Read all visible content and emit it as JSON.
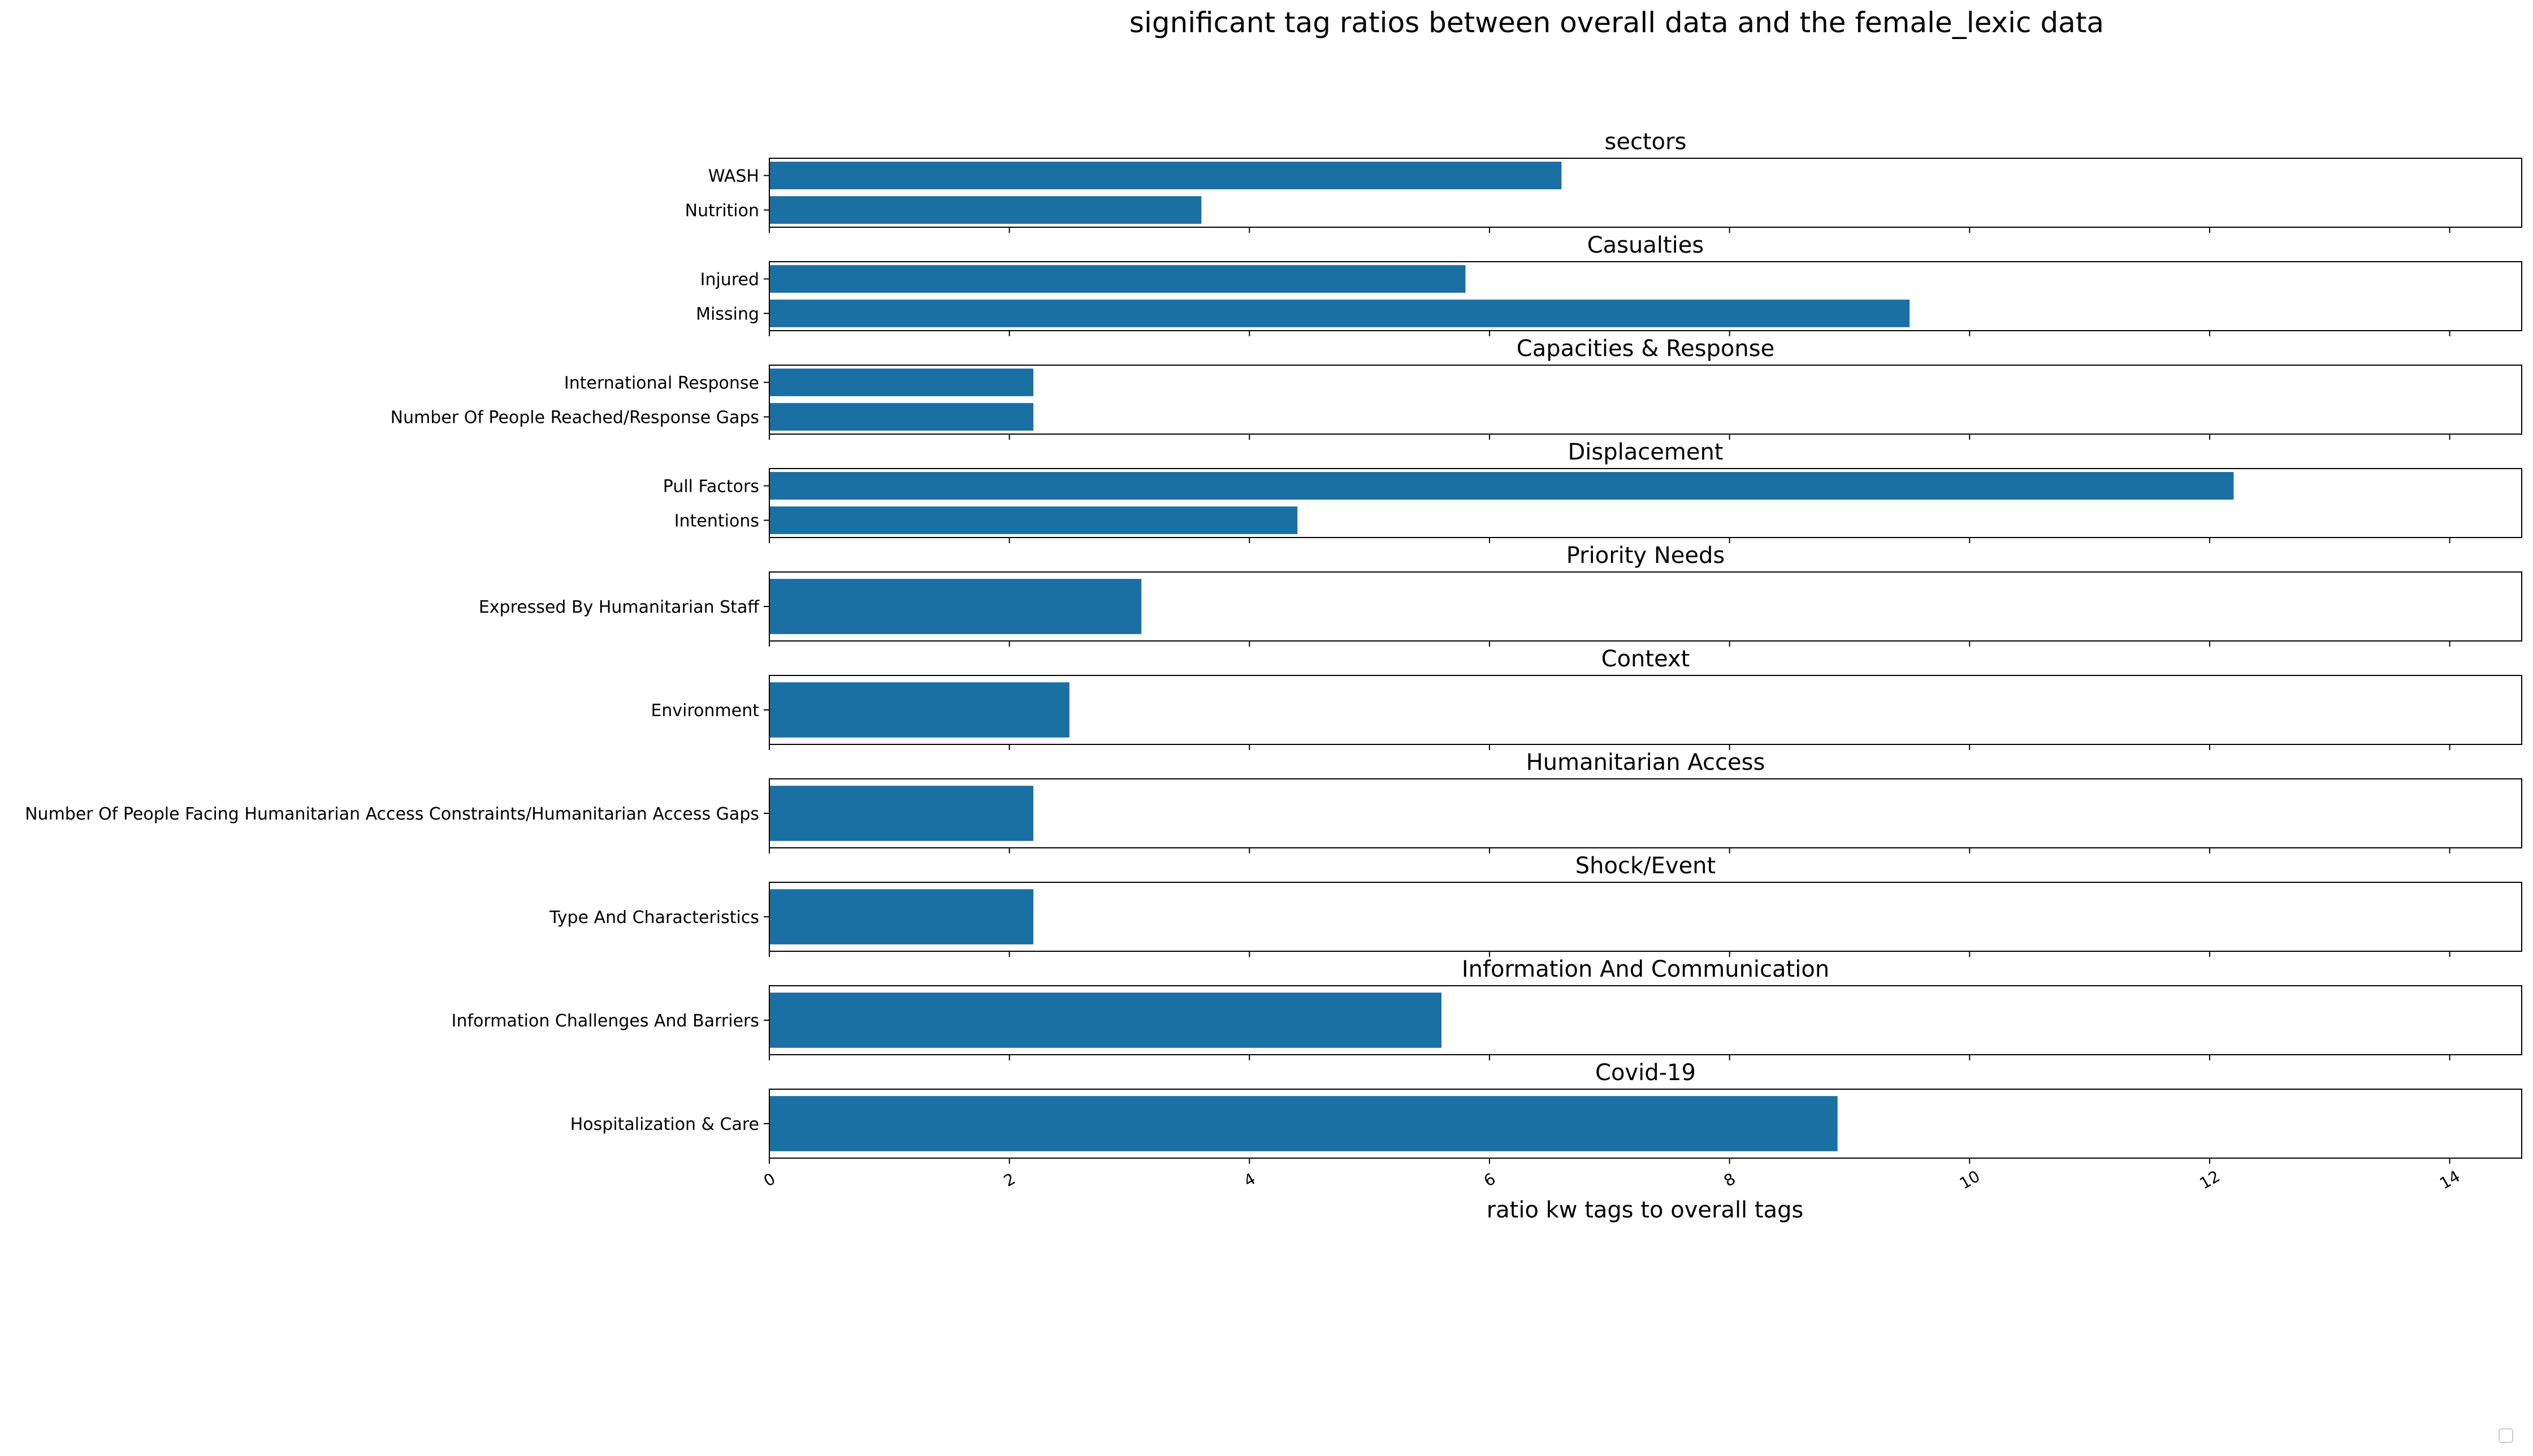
{
  "chart_data": {
    "type": "bar",
    "orientation": "horizontal",
    "title": "significant tag ratios between overall data and the female_lexic data",
    "xlabel": "ratio kw tags to overall tags",
    "xlim": [
      0,
      14.6
    ],
    "xticks": [
      0,
      2,
      4,
      6,
      8,
      10,
      12,
      14
    ],
    "xtick_labels": [
      "0",
      "2",
      "4",
      "6",
      "8",
      "10",
      "12",
      "14"
    ],
    "bar_color": "#1a6fa3",
    "legend": "empty box, bottom-right",
    "grid": false,
    "panels": [
      {
        "title": "sectors",
        "categories": [
          "WASH",
          "Nutrition"
        ],
        "values": [
          6.6,
          3.6
        ]
      },
      {
        "title": "Casualties",
        "categories": [
          "Injured",
          "Missing"
        ],
        "values": [
          5.8,
          9.5
        ]
      },
      {
        "title": "Capacities & Response",
        "categories": [
          "International Response",
          "Number Of People Reached/Response Gaps"
        ],
        "values": [
          2.2,
          2.2
        ]
      },
      {
        "title": "Displacement",
        "categories": [
          "Pull Factors",
          "Intentions"
        ],
        "values": [
          12.2,
          4.4
        ]
      },
      {
        "title": "Priority Needs",
        "categories": [
          "Expressed By Humanitarian Staff"
        ],
        "values": [
          3.1
        ]
      },
      {
        "title": "Context",
        "categories": [
          "Environment"
        ],
        "values": [
          2.5
        ]
      },
      {
        "title": "Humanitarian Access",
        "categories": [
          "Number Of People Facing Humanitarian Access Constraints/Humanitarian Access Gaps"
        ],
        "values": [
          2.2
        ]
      },
      {
        "title": "Shock/Event",
        "categories": [
          "Type And Characteristics"
        ],
        "values": [
          2.2
        ]
      },
      {
        "title": "Information And Communication",
        "categories": [
          "Information Challenges And Barriers"
        ],
        "values": [
          5.6
        ]
      },
      {
        "title": "Covid-19",
        "categories": [
          "Hospitalization & Care"
        ],
        "values": [
          8.9
        ]
      }
    ]
  }
}
